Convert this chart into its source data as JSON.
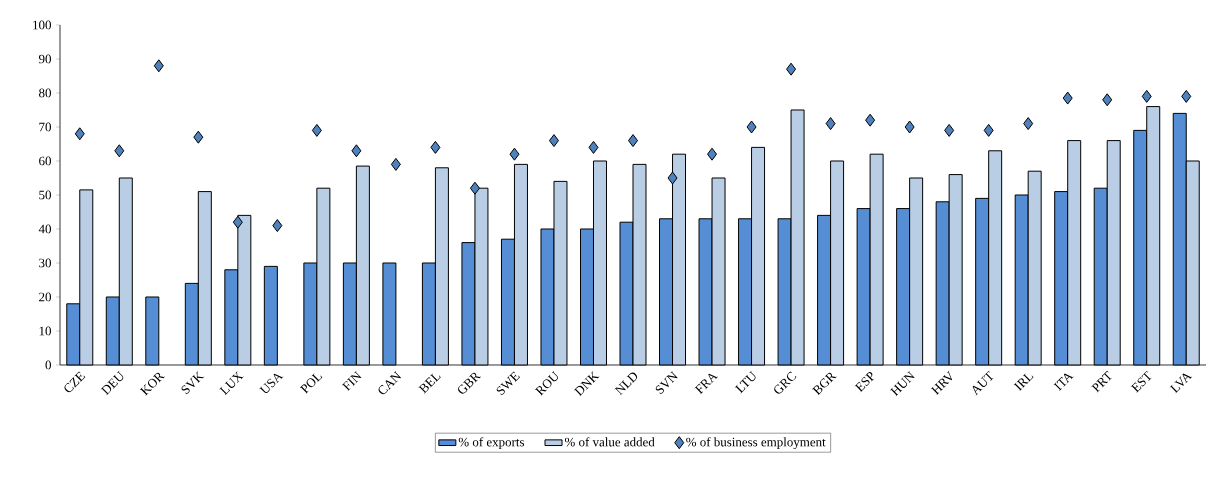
{
  "chart_data": {
    "type": "bar",
    "categories": [
      "CZE",
      "DEU",
      "KOR",
      "SVK",
      "LUX",
      "USA",
      "POL",
      "FIN",
      "CAN",
      "BEL",
      "GBR",
      "SWE",
      "ROU",
      "DNK",
      "NLD",
      "SVN",
      "FRA",
      "LTU",
      "GRC",
      "BGR",
      "ESP",
      "HUN",
      "HRV",
      "AUT",
      "IRL",
      "ITA",
      "PRT",
      "EST",
      "LVA"
    ],
    "series": [
      {
        "name": "% of exports",
        "color": "#558ed5",
        "values": [
          18,
          20,
          20,
          24,
          28,
          29,
          30,
          30,
          30,
          30,
          36,
          37,
          40,
          40,
          42,
          43,
          43,
          43,
          43,
          44,
          46,
          46,
          48,
          49,
          50,
          51,
          52,
          69,
          74
        ]
      },
      {
        "name": "% of value added",
        "color": "#b9cde5",
        "values": [
          51.5,
          55,
          null,
          51,
          44,
          null,
          52,
          58.5,
          null,
          58,
          52,
          59,
          54,
          60,
          59,
          62,
          55,
          64,
          75,
          60,
          62,
          55,
          56,
          63,
          57,
          66,
          66,
          76,
          60
        ]
      },
      {
        "name": "% of business employment",
        "color": "#4f81bd",
        "type": "scatter",
        "marker": "diamond",
        "values": [
          68,
          63,
          88,
          67,
          42,
          41,
          69,
          63,
          59,
          64,
          52,
          62,
          66,
          64,
          66,
          55,
          62,
          70,
          87,
          71,
          72,
          70,
          69,
          69,
          71,
          78.5,
          78,
          79,
          79
        ]
      }
    ],
    "ylim": [
      0,
      100
    ],
    "yticks": [
      0,
      10,
      20,
      30,
      40,
      50,
      60,
      70,
      80,
      90,
      100
    ],
    "grid": false,
    "legend": "bottom"
  }
}
